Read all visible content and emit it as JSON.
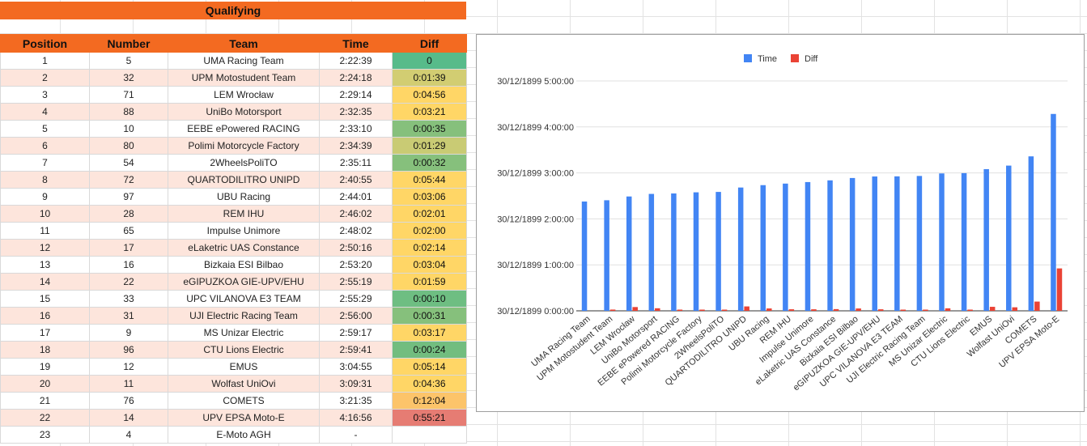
{
  "sheet": {
    "title": "Qualifying",
    "headers": [
      "Position",
      "Number",
      "Team",
      "Time",
      "Diff"
    ],
    "rows": [
      {
        "pos": "1",
        "num": "5",
        "team": "UMA Racing Team",
        "time": "2:22:39",
        "diff": "0",
        "color": "#57bb8a"
      },
      {
        "pos": "2",
        "num": "32",
        "team": "UPM Motostudent Team",
        "time": "2:24:18",
        "diff": "0:01:39",
        "color": "#d2cd72"
      },
      {
        "pos": "3",
        "num": "71",
        "team": "LEM Wrocław",
        "time": "2:29:14",
        "diff": "0:04:56",
        "color": "#ffd666"
      },
      {
        "pos": "4",
        "num": "88",
        "team": "UniBo Motorsport",
        "time": "2:32:35",
        "diff": "0:03:21",
        "color": "#ffd666"
      },
      {
        "pos": "5",
        "num": "10",
        "team": "EEBE ePowered RACING",
        "time": "2:33:10",
        "diff": "0:00:35",
        "color": "#86c07c"
      },
      {
        "pos": "6",
        "num": "80",
        "team": "Polimi Motorcycle Factory",
        "time": "2:34:39",
        "diff": "0:01:29",
        "color": "#c9cb74"
      },
      {
        "pos": "7",
        "num": "54",
        "team": "2WheelsPoliTO",
        "time": "2:35:11",
        "diff": "0:00:32",
        "color": "#86c07c"
      },
      {
        "pos": "8",
        "num": "72",
        "team": "QUARTODILITRO UNIPD",
        "time": "2:40:55",
        "diff": "0:05:44",
        "color": "#ffd666"
      },
      {
        "pos": "9",
        "num": "97",
        "team": "UBU Racing",
        "time": "2:44:01",
        "diff": "0:03:06",
        "color": "#ffd666"
      },
      {
        "pos": "10",
        "num": "28",
        "team": "REM IHU",
        "time": "2:46:02",
        "diff": "0:02:01",
        "color": "#ffd666"
      },
      {
        "pos": "11",
        "num": "65",
        "team": "Impulse Unimore",
        "time": "2:48:02",
        "diff": "0:02:00",
        "color": "#ffd666"
      },
      {
        "pos": "12",
        "num": "17",
        "team": "eLaketric UAS Constance",
        "time": "2:50:16",
        "diff": "0:02:14",
        "color": "#ffd666"
      },
      {
        "pos": "13",
        "num": "16",
        "team": "Bizkaia ESI Bilbao",
        "time": "2:53:20",
        "diff": "0:03:04",
        "color": "#ffd666"
      },
      {
        "pos": "14",
        "num": "22",
        "team": "eGIPUZKOA GIE-UPV/EHU",
        "time": "2:55:19",
        "diff": "0:01:59",
        "color": "#ffd666"
      },
      {
        "pos": "15",
        "num": "33",
        "team": "UPC VILANOVA E3 TEAM",
        "time": "2:55:29",
        "diff": "0:00:10",
        "color": "#6ebe82"
      },
      {
        "pos": "16",
        "num": "31",
        "team": "UJI Electric Racing Team",
        "time": "2:56:00",
        "diff": "0:00:31",
        "color": "#86c07c"
      },
      {
        "pos": "17",
        "num": "9",
        "team": "MS Unizar Electric",
        "time": "2:59:17",
        "diff": "0:03:17",
        "color": "#ffd666"
      },
      {
        "pos": "18",
        "num": "96",
        "team": "CTU Lions Electric",
        "time": "2:59:41",
        "diff": "0:00:24",
        "color": "#72bd7f"
      },
      {
        "pos": "19",
        "num": "12",
        "team": "EMUS",
        "time": "3:04:55",
        "diff": "0:05:14",
        "color": "#ffd666"
      },
      {
        "pos": "20",
        "num": "11",
        "team": "Wolfast UniOvi",
        "time": "3:09:31",
        "diff": "0:04:36",
        "color": "#ffd666"
      },
      {
        "pos": "21",
        "num": "76",
        "team": "COMETS",
        "time": "3:21:35",
        "diff": "0:12:04",
        "color": "#fcc46a"
      },
      {
        "pos": "22",
        "num": "14",
        "team": "UPV EPSA Moto-E",
        "time": "4:16:56",
        "diff": "0:55:21",
        "color": "#e67c73"
      },
      {
        "pos": "23",
        "num": "4",
        "team": "E-Moto AGH",
        "time": "-",
        "diff": "",
        "color": ""
      }
    ]
  },
  "chart_data": {
    "type": "bar",
    "title": "",
    "xlabel": "",
    "ylabel": "",
    "legend_position": "top",
    "y_tick_labels": [
      "30/12/1899 0:00:00",
      "30/12/1899 1:00:00",
      "30/12/1899 2:00:00",
      "30/12/1899 3:00:00",
      "30/12/1899 4:00:00",
      "30/12/1899 5:00:00"
    ],
    "ylim_hours": [
      0,
      5
    ],
    "grid": true,
    "categories": [
      "UMA Racing Team",
      "UPM Motostudent Team",
      "LEM Wrocław",
      "UniBo Motorsport",
      "EEBE ePowered RACING",
      "Polimi Motorcycle Factory",
      "2WheelsPoliTO",
      "QUARTODILITRO UNIPD",
      "UBU Racing",
      "REM IHU",
      "Impulse Unimore",
      "eLaketric UAS Constance",
      "Bizkaia ESI Bilbao",
      "eGIPUZKOA GIE-UPV/EHU",
      "UPC VILANOVA E3 TEAM",
      "UJI Electric Racing Team",
      "MS Unizar Electric",
      "CTU Lions Electric",
      "EMUS",
      "Wolfast UniOvi",
      "COMETS",
      "UPV EPSA Moto-E"
    ],
    "series": [
      {
        "name": "Time",
        "color": "#4285f4",
        "values_hours": [
          2.3775,
          2.405,
          2.4872,
          2.5431,
          2.5528,
          2.5775,
          2.5864,
          2.6819,
          2.7336,
          2.7672,
          2.8006,
          2.8378,
          2.8889,
          2.9219,
          2.9247,
          2.9333,
          2.9881,
          2.9947,
          3.0819,
          3.1586,
          3.3597,
          4.2822
        ]
      },
      {
        "name": "Diff",
        "color": "#ea4335",
        "values_hours": [
          0,
          0.0275,
          0.0822,
          0.0558,
          0.0097,
          0.0247,
          0.0089,
          0.0956,
          0.0517,
          0.0336,
          0.0333,
          0.0372,
          0.0511,
          0.0331,
          0.0028,
          0.0086,
          0.0547,
          0.0067,
          0.0872,
          0.0767,
          0.2011,
          0.9225
        ]
      }
    ]
  }
}
